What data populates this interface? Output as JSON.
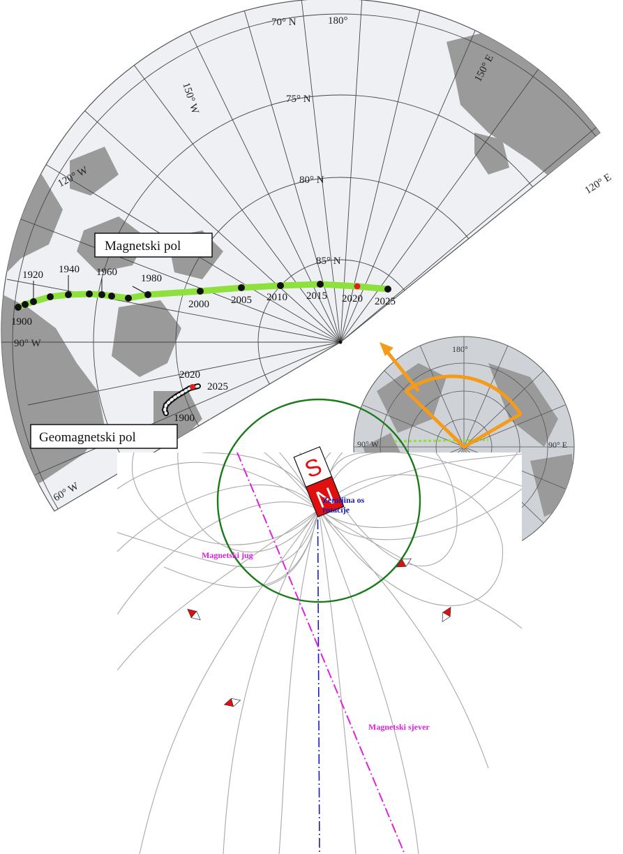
{
  "polar_map": {
    "lat_labels": [
      "70° N",
      "75° N",
      "80° N",
      "85° N"
    ],
    "lon_labels": [
      "180°",
      "150° W",
      "150° E",
      "120° W",
      "120° E",
      "90° W",
      "60° W"
    ],
    "magnetic_label": "Magnetski pol",
    "geomagnetic_label": "Geomagnetski pol",
    "magnetic_years": [
      "1900",
      "1920",
      "1940",
      "1960",
      "1980",
      "2000",
      "2005",
      "2010",
      "2015",
      "2020",
      "2025"
    ],
    "geomagnetic_years": [
      "2020",
      "2025",
      "1900"
    ]
  },
  "inset_globe": {
    "labels": [
      "180°",
      "90° W",
      "90° E"
    ]
  },
  "field_diagram": {
    "rotation_axis_label_1": "Zemljina os",
    "rotation_axis_label_2": "rotacije",
    "magnetic_south_label": "Magnetski jug",
    "magnetic_north_label": "Magnetski sjever",
    "magnet_s": "S",
    "magnet_n": "N"
  },
  "colors": {
    "land": "#9a9a9a",
    "ocean": "#eef0f3",
    "track": "#8ee03c",
    "highlight": "#f59b1a",
    "rotation_axis": "#1a1ab8",
    "magnetic_axis": "#e020e0",
    "earth_circle": "#1a7a1a",
    "magnet_red": "#e01010"
  }
}
